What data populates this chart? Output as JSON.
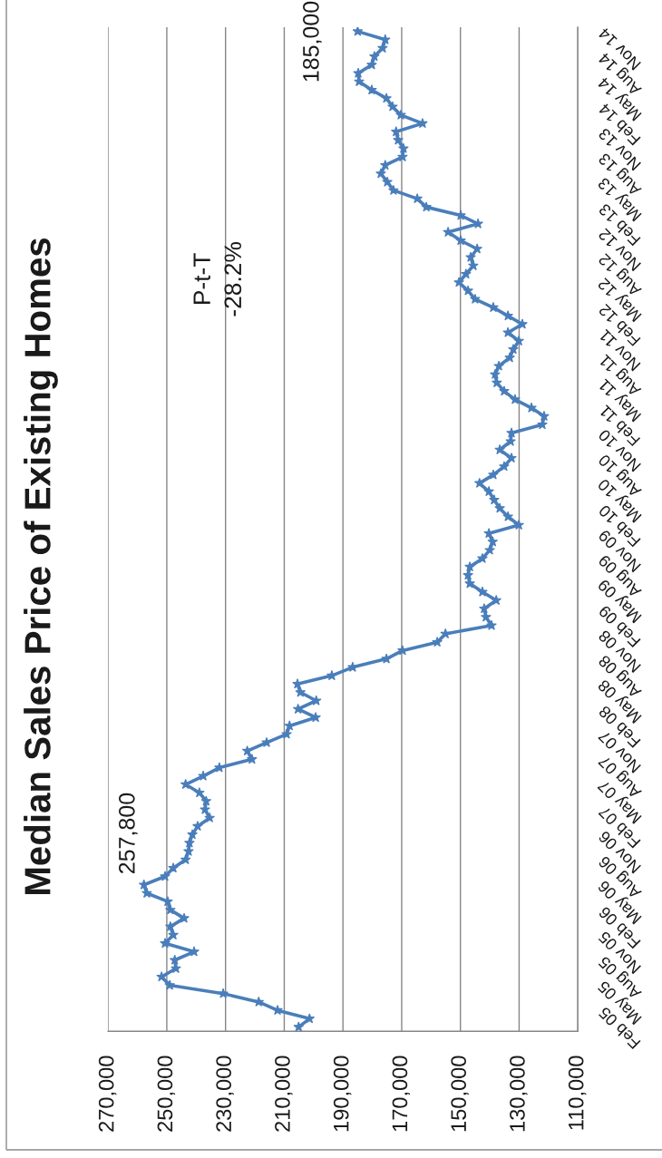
{
  "chart_data": {
    "type": "line",
    "title": "Median Sales Price of Existing Homes",
    "orientation": "horizontal",
    "categories": [
      null,
      null,
      "Nov 14",
      null,
      null,
      "Aug 14",
      null,
      null,
      "May 14",
      null,
      null,
      "Feb 14",
      null,
      null,
      "Nov 13",
      null,
      null,
      "Aug 13",
      null,
      null,
      "May 13",
      null,
      null,
      "Feb 13",
      null,
      null,
      "Nov 12",
      null,
      null,
      "Aug 12",
      null,
      null,
      "May 12",
      null,
      null,
      "Feb 12",
      null,
      null,
      "Nov 11",
      null,
      null,
      "Aug 11",
      null,
      null,
      "May 11",
      null,
      null,
      "Feb 11",
      null,
      null,
      "Nov 10",
      null,
      null,
      "Aug 10",
      null,
      null,
      "May 10",
      null,
      null,
      "Feb 10",
      null,
      null,
      "Nov 09",
      null,
      null,
      "Aug 09",
      null,
      null,
      "May 09",
      null,
      null,
      "Feb 09",
      null,
      null,
      "Nov 08",
      null,
      null,
      "Aug 08",
      null,
      null,
      "May 08",
      null,
      null,
      "Feb 08",
      null,
      null,
      "Nov 07",
      null,
      null,
      "Aug 07",
      null,
      null,
      "May 07",
      null,
      null,
      "Feb 07",
      null,
      null,
      "Nov 06",
      null,
      null,
      "Aug 06",
      null,
      null,
      "May 06",
      null,
      null,
      "Feb 06",
      null,
      null,
      "Nov 05",
      null,
      null,
      "Aug 05",
      null,
      null,
      "May 05",
      null,
      null,
      "Feb 05"
    ],
    "values": [
      185000,
      175600,
      176500,
      179300,
      180200,
      184800,
      184500,
      180200,
      175200,
      173100,
      170300,
      162900,
      171900,
      171200,
      169400,
      169700,
      175600,
      177100,
      174900,
      172800,
      164700,
      161600,
      149900,
      144000,
      154200,
      149900,
      144300,
      146500,
      145600,
      148100,
      150500,
      147400,
      145000,
      138800,
      133800,
      128900,
      133800,
      130100,
      132000,
      133200,
      136900,
      138200,
      137600,
      135100,
      131400,
      125800,
      121500,
      122100,
      132600,
      132900,
      136600,
      132600,
      135100,
      138800,
      143500,
      140300,
      138500,
      136600,
      133800,
      130100,
      140300,
      139000,
      140000,
      142500,
      146800,
      147400,
      146800,
      142500,
      137800,
      141900,
      141300,
      139400,
      155100,
      157900,
      169700,
      175200,
      186700,
      193800,
      205500,
      204500,
      199100,
      205300,
      199300,
      208200,
      209200,
      216000,
      222600,
      221000,
      232100,
      237600,
      243600,
      238900,
      236600,
      237000,
      235400,
      239500,
      241300,
      242300,
      242600,
      243600,
      247800,
      250600,
      257800,
      256800,
      249700,
      248800,
      244100,
      248800,
      247800,
      250600,
      240700,
      247300,
      246900,
      251800,
      249000,
      230800,
      218700,
      212300,
      201400,
      205100
    ],
    "color": "#4a7ebb",
    "xlim": [
      270000,
      110000
    ],
    "xticks": [
      {
        "value": 270000,
        "label": "270,000"
      },
      {
        "value": 250000,
        "label": "250,000"
      },
      {
        "value": 230000,
        "label": "230,000"
      },
      {
        "value": 210000,
        "label": "210,000"
      },
      {
        "value": 190000,
        "label": "190,000"
      },
      {
        "value": 170000,
        "label": "170,000"
      },
      {
        "value": 150000,
        "label": "150,000"
      },
      {
        "value": 130000,
        "label": "130,000"
      },
      {
        "value": 110000,
        "label": "110,000"
      }
    ],
    "grid": "x",
    "marker": "star",
    "line_style": "solid",
    "annotations": [
      "185,000",
      "257,800",
      "P-t-T\n-28.2%"
    ]
  }
}
